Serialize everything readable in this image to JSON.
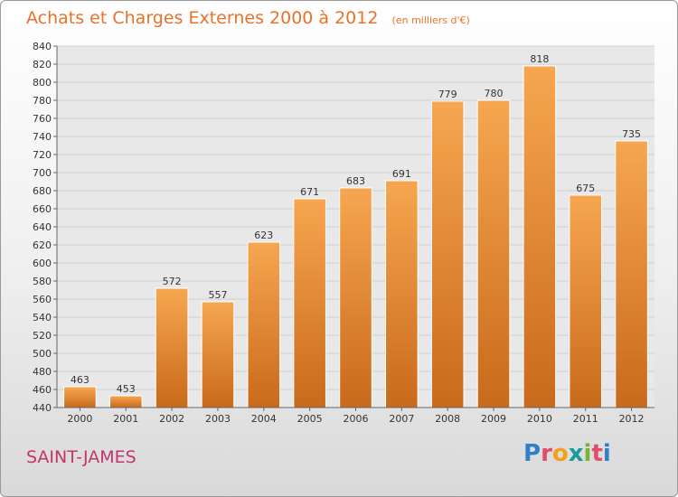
{
  "chart_data": {
    "type": "bar",
    "title": "Achats et Charges Externes 2000 à 2012",
    "subtitle": "(en milliers d'€)",
    "categories": [
      "2000",
      "2001",
      "2002",
      "2003",
      "2004",
      "2005",
      "2006",
      "2007",
      "2008",
      "2009",
      "2010",
      "2011",
      "2012"
    ],
    "values": [
      463,
      453,
      572,
      557,
      623,
      671,
      683,
      691,
      779,
      780,
      818,
      675,
      735
    ],
    "ylim": [
      440,
      840
    ],
    "ytick_step": 20,
    "grid": true,
    "bar_color_top": "#f7a650",
    "bar_color_bottom": "#c86a1b"
  },
  "footer": {
    "commune": "SAINT-JAMES",
    "logo_letters": [
      "P",
      "r",
      "o",
      "x",
      "i",
      "t",
      "i"
    ],
    "logo_colors": [
      "#2f7fc9",
      "#e24d6a",
      "#f3a11a",
      "#1a9b9b",
      "#7cb335",
      "#e24d6a",
      "#2f7fc9"
    ]
  }
}
